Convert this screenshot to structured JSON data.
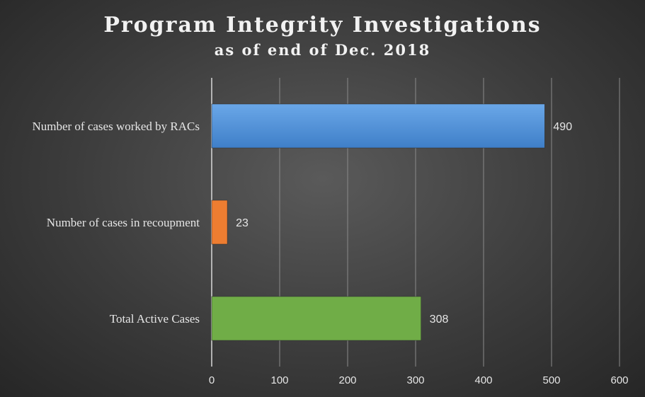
{
  "chart_data": {
    "type": "bar",
    "orientation": "horizontal",
    "title": "Program Integrity Investigations",
    "subtitle": "as of end of Dec.  2018",
    "categories": [
      "Number of cases worked by RACs",
      "Number of cases in recoupment",
      "Total Active Cases"
    ],
    "values": [
      490,
      23,
      308
    ],
    "bar_colors": [
      "#4f8fd6",
      "#ed7d31",
      "#70ad47"
    ],
    "xlim": [
      0,
      600
    ],
    "ticks": [
      "0",
      "100",
      "200",
      "300",
      "400",
      "500",
      "600"
    ],
    "tick_values": [
      0,
      100,
      200,
      300,
      400,
      500,
      600
    ],
    "grid": true,
    "data_labels": true,
    "legend": "none"
  }
}
